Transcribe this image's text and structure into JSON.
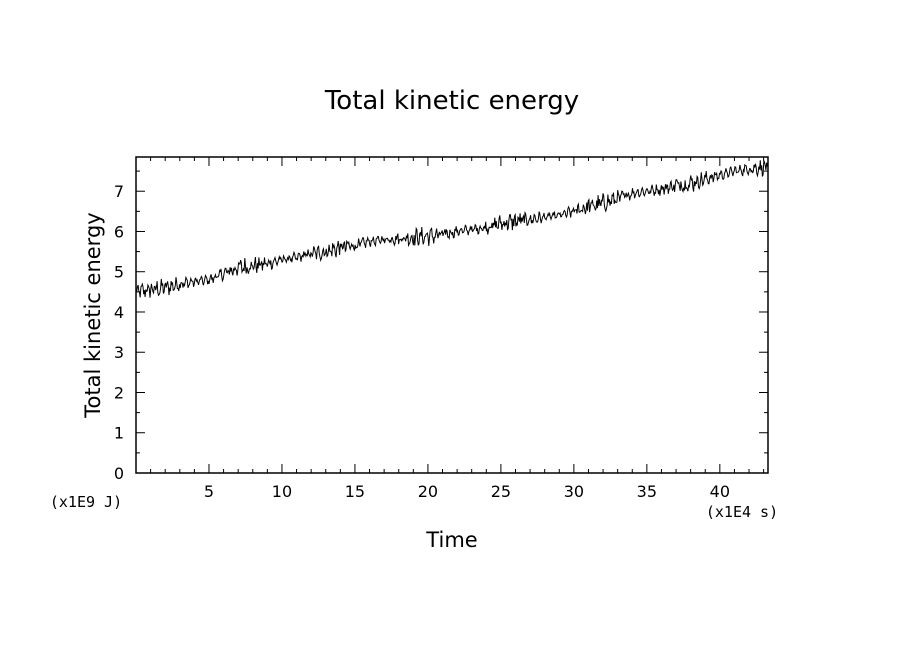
{
  "chart_data": {
    "type": "line",
    "title": "Total kinetic energy",
    "xlabel": "Time",
    "ylabel": "Total kinetic energy",
    "x_unit_label": "(x1E4 s)",
    "y_unit_label": "(x1E9 J)",
    "xlim": [
      0,
      43.3
    ],
    "ylim": [
      0,
      7.85
    ],
    "x_ticks": [
      5,
      10,
      15,
      20,
      25,
      30,
      35,
      40
    ],
    "y_ticks": [
      0,
      1,
      2,
      3,
      4,
      5,
      6,
      7
    ],
    "grid": false,
    "series": [
      {
        "x": [
          0,
          1,
          2,
          3,
          4,
          5,
          6,
          7,
          8,
          9,
          10,
          11,
          12,
          13,
          14,
          15,
          16,
          17,
          18,
          19,
          20,
          21,
          22,
          23,
          24,
          25,
          26,
          27,
          28,
          29,
          30,
          31,
          32,
          33,
          34,
          35,
          36,
          37,
          38,
          39,
          40,
          41,
          42,
          43,
          43.3
        ],
        "y": [
          4.5,
          4.55,
          4.6,
          4.7,
          4.75,
          4.8,
          4.95,
          5.1,
          5.15,
          5.2,
          5.3,
          5.35,
          5.45,
          5.5,
          5.6,
          5.65,
          5.75,
          5.8,
          5.82,
          5.85,
          5.88,
          5.92,
          6.0,
          6.05,
          6.1,
          6.2,
          6.25,
          6.3,
          6.35,
          6.4,
          6.5,
          6.62,
          6.7,
          6.82,
          6.95,
          7.0,
          7.05,
          7.15,
          7.2,
          7.3,
          7.4,
          7.5,
          7.55,
          7.6,
          7.6
        ]
      }
    ]
  }
}
